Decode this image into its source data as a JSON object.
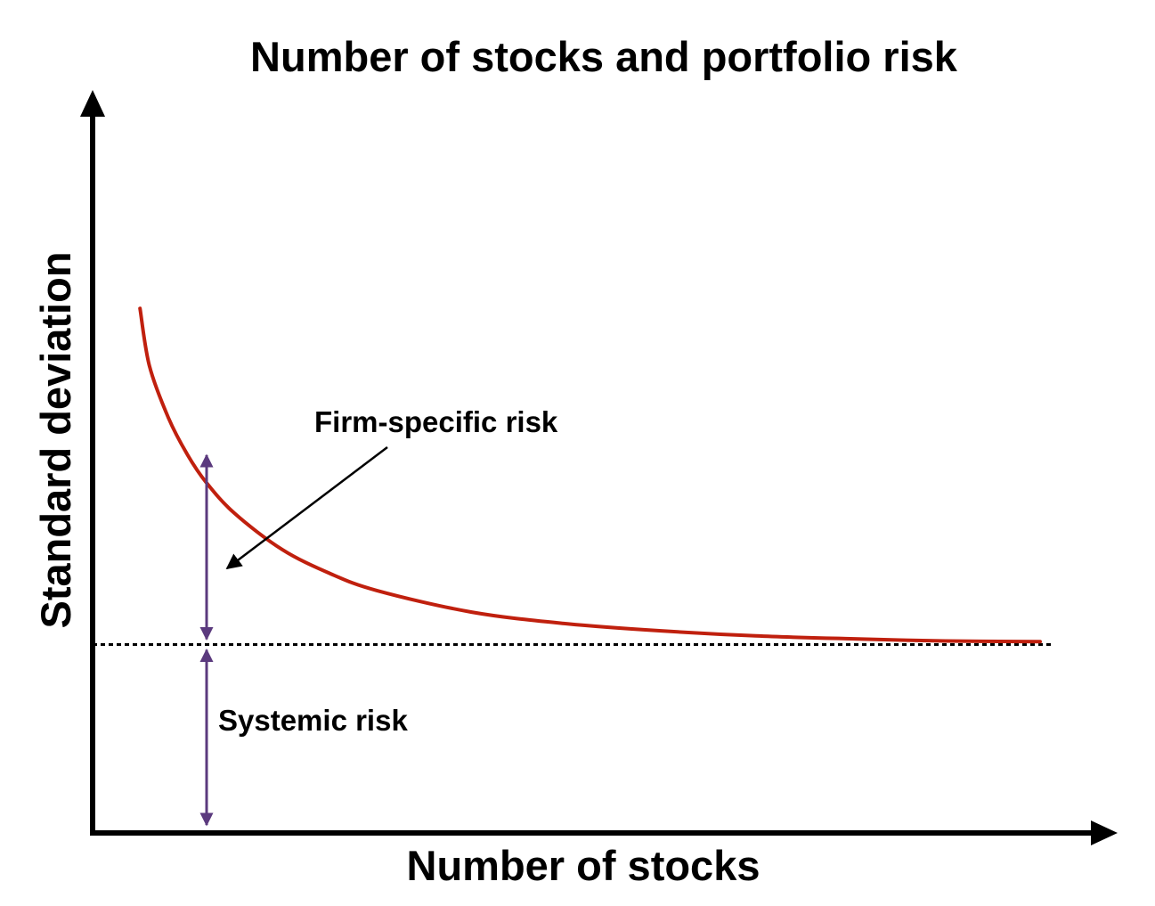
{
  "chart_data": {
    "type": "line",
    "title": "Number of stocks and portfolio risk",
    "xlabel": "Number of stocks",
    "ylabel": "Standard deviation",
    "grid": false,
    "xlim": [
      0,
      100
    ],
    "ylim": [
      0,
      100
    ],
    "series": [
      {
        "x": [
          5,
          6,
          8,
          10,
          12,
          15,
          20,
          25,
          30,
          40,
          50,
          60,
          70,
          80,
          90,
          100
        ],
        "values": [
          73,
          65,
          57.8,
          52.7,
          48.8,
          44.5,
          39.5,
          36.2,
          33.8,
          30.8,
          29.2,
          28.2,
          27.5,
          27.1,
          26.8,
          26.7
        ]
      }
    ],
    "reference_line": {
      "y": 26.3,
      "style": "dotted"
    },
    "annotations": [
      {
        "text": "Firm-specific risk"
      },
      {
        "text": "Systemic risk"
      }
    ],
    "colors": {
      "curve": "#c0200e",
      "bracket_arrows": "#5b3a7e",
      "axes": "#000000"
    }
  }
}
